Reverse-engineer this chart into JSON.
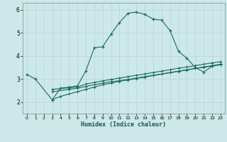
{
  "xlabel": "Humidex (Indice chaleur)",
  "xlim": [
    -0.5,
    23.5
  ],
  "ylim": [
    1.5,
    6.3
  ],
  "yticks": [
    2,
    3,
    4,
    5,
    6
  ],
  "xticks": [
    0,
    1,
    2,
    3,
    4,
    5,
    6,
    7,
    8,
    9,
    10,
    11,
    12,
    13,
    14,
    15,
    16,
    17,
    18,
    19,
    20,
    21,
    22,
    23
  ],
  "bg_color": "#cce8e8",
  "grid_color": "#b8d4d4",
  "line_color": "#1a6b5a",
  "line1_x": [
    0,
    1,
    3,
    4,
    5,
    6,
    7,
    8,
    9,
    10,
    11,
    12,
    13,
    14,
    15,
    16,
    17,
    18,
    19,
    20,
    21,
    22,
    23
  ],
  "line1_y": [
    3.2,
    3.0,
    2.1,
    2.6,
    2.65,
    2.7,
    3.35,
    4.35,
    4.4,
    4.95,
    5.45,
    5.85,
    5.9,
    5.8,
    5.6,
    5.55,
    5.1,
    4.2,
    3.9,
    3.5,
    3.3,
    3.55,
    3.65
  ],
  "line2_x": [
    3,
    5,
    6,
    7,
    8,
    9,
    10,
    11,
    12,
    13,
    14,
    15,
    16,
    17,
    18,
    19,
    20,
    21,
    22,
    23
  ],
  "line2_y": [
    2.55,
    2.62,
    2.65,
    2.78,
    2.85,
    2.92,
    2.98,
    3.04,
    3.1,
    3.16,
    3.22,
    3.28,
    3.34,
    3.4,
    3.47,
    3.52,
    3.58,
    3.64,
    3.7,
    3.75
  ],
  "line3_x": [
    3,
    5,
    6,
    7,
    8,
    9,
    10,
    11,
    12,
    13,
    14,
    15,
    16,
    17,
    18,
    19,
    20,
    21,
    22,
    23
  ],
  "line3_y": [
    2.45,
    2.55,
    2.6,
    2.68,
    2.75,
    2.82,
    2.88,
    2.93,
    2.98,
    3.04,
    3.1,
    3.16,
    3.22,
    3.28,
    3.34,
    3.4,
    3.46,
    3.52,
    3.58,
    3.63
  ],
  "line4_x": [
    3,
    4,
    5,
    6,
    7,
    8,
    9,
    10,
    11,
    12,
    13,
    14,
    15,
    16,
    17,
    18,
    19,
    20,
    21,
    22,
    23
  ],
  "line4_y": [
    2.1,
    2.25,
    2.35,
    2.45,
    2.55,
    2.65,
    2.75,
    2.82,
    2.9,
    2.96,
    3.02,
    3.08,
    3.15,
    3.21,
    3.27,
    3.33,
    3.39,
    3.46,
    3.51,
    3.56,
    3.62
  ]
}
